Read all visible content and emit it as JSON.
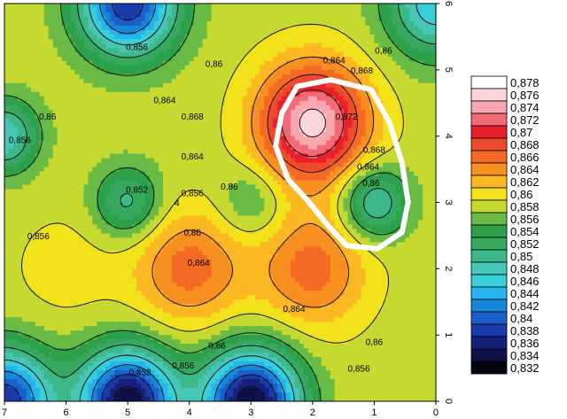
{
  "chart_data": {
    "type": "heatmap",
    "subtype": "filled-contour",
    "title": "",
    "xlabel": "",
    "ylabel": "",
    "x_axis": {
      "range": [
        7,
        0
      ],
      "reversed": true,
      "ticks": [
        "7",
        "6",
        "5",
        "4",
        "3",
        "2",
        "1",
        "0"
      ]
    },
    "y_axis": {
      "range": [
        0,
        6
      ],
      "position": "right",
      "ticks": [
        "0",
        "1",
        "2",
        "3",
        "4",
        "5",
        "6"
      ]
    },
    "grid": false,
    "legend": {
      "placement": "right",
      "levels": [
        "0,878",
        "0,876",
        "0,874",
        "0,872",
        "0,87",
        "0,868",
        "0,866",
        "0,864",
        "0,862",
        "0,86",
        "0,858",
        "0,856",
        "0,854",
        "0,852",
        "0,85",
        "0,848",
        "0,846",
        "0,844",
        "0,842",
        "0,84",
        "0,838",
        "0,836",
        "0,834",
        "0,832"
      ],
      "colors": [
        "#ffffff",
        "#fcd6d9",
        "#f9a7b0",
        "#f26a74",
        "#e8202a",
        "#f04a2c",
        "#f46a24",
        "#f79020",
        "#fbb823",
        "#f2e21b",
        "#c6d930",
        "#69bb45",
        "#2da04a",
        "#36a95e",
        "#3cb88a",
        "#47c6b5",
        "#38cfd9",
        "#23b5eb",
        "#1487dd",
        "#1a5fca",
        "#1a3aa8",
        "#16207a",
        "#101048",
        "#050510"
      ]
    },
    "contour_labels": [
      {
        "text": "0,856",
        "x": 4.85,
        "y": 5.35
      },
      {
        "text": "0,86",
        "x": 3.6,
        "y": 5.1
      },
      {
        "text": "0,864",
        "x": 4.4,
        "y": 4.55
      },
      {
        "text": "0,868",
        "x": 3.95,
        "y": 4.3
      },
      {
        "text": "0,864",
        "x": 1.65,
        "y": 5.15
      },
      {
        "text": "0,868",
        "x": 1.2,
        "y": 5.0
      },
      {
        "text": "0,86",
        "x": 0.85,
        "y": 5.3
      },
      {
        "text": "0,872",
        "x": 1.45,
        "y": 4.3
      },
      {
        "text": "0,868",
        "x": 1.0,
        "y": 3.8
      },
      {
        "text": "0,864",
        "x": 1.1,
        "y": 3.55
      },
      {
        "text": "0,86",
        "x": 1.05,
        "y": 3.3
      },
      {
        "text": "0,86",
        "x": 6.3,
        "y": 4.3
      },
      {
        "text": "0,856",
        "x": 6.75,
        "y": 3.95
      },
      {
        "text": "0,864",
        "x": 3.95,
        "y": 3.7
      },
      {
        "text": "0,852",
        "x": 4.85,
        "y": 3.2
      },
      {
        "text": "0,856",
        "x": 3.95,
        "y": 3.15
      },
      {
        "text": "4",
        "x": 4.2,
        "y": 3.0
      },
      {
        "text": "0,86",
        "x": 3.35,
        "y": 3.25
      },
      {
        "text": "0,856",
        "x": 6.45,
        "y": 2.5
      },
      {
        "text": "0,86",
        "x": 3.95,
        "y": 2.55
      },
      {
        "text": "0,864",
        "x": 3.85,
        "y": 2.1
      },
      {
        "text": "0,864",
        "x": 2.3,
        "y": 1.4
      },
      {
        "text": "0,86",
        "x": 3.55,
        "y": 0.85
      },
      {
        "text": "0,86",
        "x": 1.0,
        "y": 0.9
      },
      {
        "text": "0,852",
        "x": 4.8,
        "y": 0.45
      },
      {
        "text": "0,856",
        "x": 4.1,
        "y": 0.55
      },
      {
        "text": "0,856",
        "x": 1.25,
        "y": 0.5
      }
    ],
    "features": [
      {
        "kind": "max",
        "x": 2.0,
        "y": 4.2,
        "value_range": "0,876-0,878"
      },
      {
        "kind": "max",
        "x": 4.0,
        "y": 2.0,
        "value_range": "0,866-0,868"
      },
      {
        "kind": "max",
        "x": 2.0,
        "y": 2.0,
        "value_range": "0,866-0,868"
      },
      {
        "kind": "max",
        "x": 6.0,
        "y": 2.0,
        "value_range": "0,86-0,862"
      },
      {
        "kind": "min",
        "x": 1.0,
        "y": 3.0,
        "value_range": "0,848-0,85"
      },
      {
        "kind": "min",
        "x": 5.0,
        "y": 3.0,
        "value_range": "0,85-0,852"
      },
      {
        "kind": "min",
        "x": 3.0,
        "y": 3.0,
        "value_range": "0,854-0,856"
      },
      {
        "kind": "min",
        "x": 3.0,
        "y": 0.0,
        "value_range": "0,832-0,836"
      },
      {
        "kind": "min",
        "x": 5.0,
        "y": 0.0,
        "value_range": "0,832-0,836"
      },
      {
        "kind": "min",
        "x": 5.0,
        "y": 6.0,
        "value_range": "0,836-0,84"
      },
      {
        "kind": "min",
        "x": 7.0,
        "y": 0.0,
        "value_range": "0,836-0,84"
      },
      {
        "kind": "min",
        "x": 7.0,
        "y": 4.0,
        "value_range": "0,846-0,85"
      },
      {
        "kind": "min",
        "x": 0.0,
        "y": 6.0,
        "value_range": "0,844-0,848"
      }
    ],
    "annotation": {
      "kind": "hand-drawn outline",
      "color": "#ffffff",
      "description": ""
    }
  }
}
